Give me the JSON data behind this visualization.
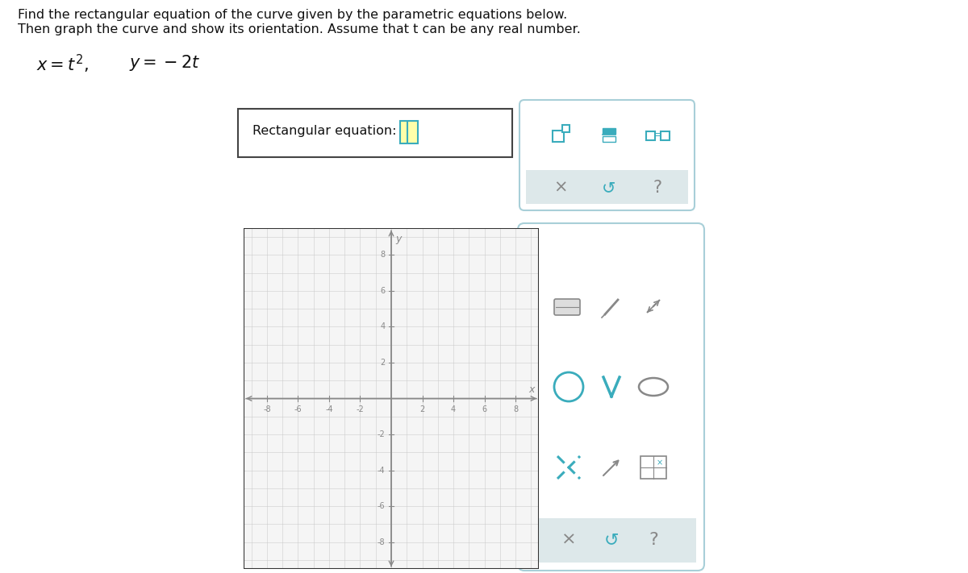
{
  "title_line1": "Find the rectangular equation of the curve given by the parametric equations below.",
  "title_line2": "Then graph the curve and show its orientation. Assume that t can be any real number.",
  "background_color": "#ffffff",
  "grid_color": "#cccccc",
  "axis_color": "#888888",
  "teal": "#3aacbc",
  "teal_dark": "#2a8a9a",
  "gray_icon": "#888888",
  "panel_border": "#a8cfd8",
  "panel_bg": "#ffffff",
  "gray_row_bg": "#dde8ea",
  "graph_bg": "#f5f5f5"
}
